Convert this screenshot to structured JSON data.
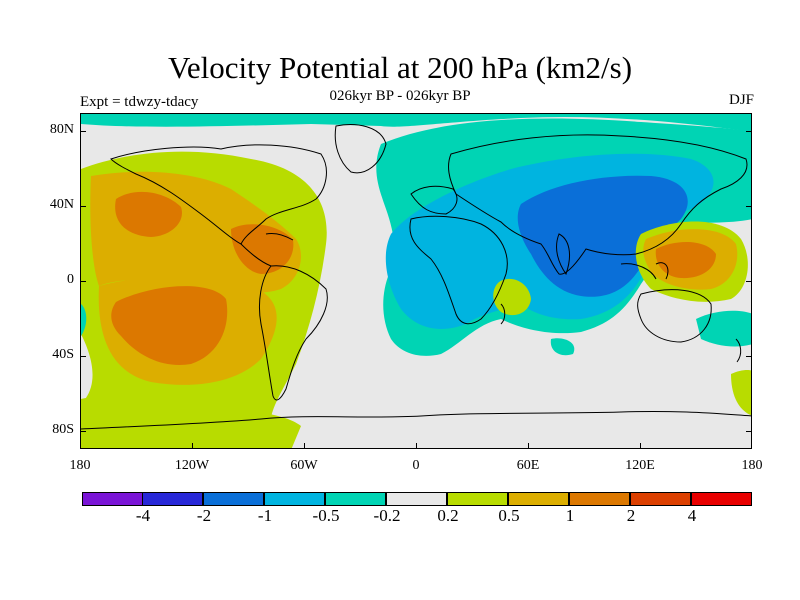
{
  "title": "Velocity Potential at 200 hPa (km2/s)",
  "subtitle": "026kyr BP - 026kyr BP",
  "experiment": "Expt = tdwzy-tdacy",
  "season": "DJF",
  "axes": {
    "y_ticks": [
      "80N",
      "40N",
      "0",
      "40S",
      "80S"
    ],
    "x_ticks": [
      "180",
      "120W",
      "60W",
      "0",
      "60E",
      "120E",
      "180"
    ]
  },
  "colorbar": {
    "levels": [
      "-4",
      "-2",
      "-1",
      "-0.5",
      "-0.2",
      "0.2",
      "0.5",
      "1",
      "2",
      "4"
    ],
    "colors": [
      "#7a14d6",
      "#2828d8",
      "#0a6fd8",
      "#00b4e0",
      "#00d4b4",
      "#e8e8e8",
      "#b8dc00",
      "#dcae00",
      "#dc7800",
      "#dc4000",
      "#e80000"
    ]
  },
  "map_colors": {
    "background": "#e8e8e8",
    "pos_02": "#b8dc00",
    "pos_05": "#dcae00",
    "pos_1": "#dc7800",
    "neg_02": "#00d4b4",
    "neg_05": "#00b4e0",
    "neg_1": "#0a6fd8",
    "coast": "#000000"
  }
}
